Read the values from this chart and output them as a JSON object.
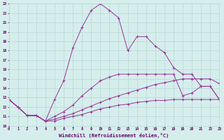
{
  "xlabel": "Windchill (Refroidissement éolien,°C)",
  "background_color": "#d5eeec",
  "grid_color": "#b8d8d6",
  "line_color": "#993399",
  "xlim": [
    0,
    23
  ],
  "ylim": [
    10,
    23
  ],
  "xticks": [
    0,
    1,
    2,
    3,
    4,
    5,
    6,
    7,
    8,
    9,
    10,
    11,
    12,
    13,
    14,
    15,
    16,
    17,
    18,
    19,
    20,
    21,
    22,
    23
  ],
  "yticks": [
    10,
    11,
    12,
    13,
    14,
    15,
    16,
    17,
    18,
    19,
    20,
    21,
    22,
    23
  ],
  "series": [
    [
      12.8,
      12.0,
      11.1,
      11.1,
      10.5,
      10.5,
      10.8,
      11.0,
      11.2,
      11.5,
      11.8,
      12.0,
      12.2,
      12.3,
      12.5,
      12.6,
      12.7,
      12.7,
      12.8,
      12.8,
      12.8,
      12.8,
      12.8,
      12.8
    ],
    [
      12.8,
      12.0,
      11.1,
      11.1,
      10.5,
      10.7,
      11.0,
      11.3,
      11.7,
      12.1,
      12.5,
      12.9,
      13.2,
      13.5,
      13.8,
      14.1,
      14.4,
      14.6,
      14.8,
      15.0,
      15.0,
      15.0,
      15.0,
      14.5
    ],
    [
      12.8,
      12.0,
      11.1,
      11.1,
      10.5,
      11.0,
      11.5,
      12.2,
      13.2,
      14.0,
      14.8,
      15.2,
      15.5,
      15.5,
      15.5,
      15.5,
      15.5,
      15.5,
      15.5,
      13.2,
      13.5,
      14.2,
      14.2,
      12.8
    ],
    [
      12.8,
      12.0,
      11.1,
      11.1,
      10.5,
      12.8,
      14.8,
      18.3,
      20.5,
      22.3,
      23.0,
      22.3,
      21.5,
      18.0,
      19.5,
      19.5,
      18.5,
      17.8,
      16.2,
      15.5,
      15.5,
      14.2,
      14.2,
      12.8
    ]
  ]
}
